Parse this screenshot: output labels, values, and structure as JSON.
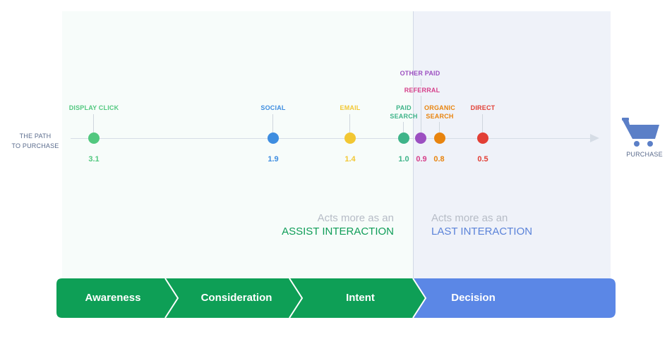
{
  "path_label": [
    "THE PATH",
    "TO PURCHASE"
  ],
  "purchase_label": "PURCHASE",
  "channels": [
    {
      "name": "DISPLAY CLICK",
      "value": "3.1",
      "color": "#52c87f"
    },
    {
      "name": "SOCIAL",
      "value": "1.9",
      "color": "#3e8de0"
    },
    {
      "name": "EMAIL",
      "value": "1.4",
      "color": "#f2c733"
    },
    {
      "name": "PAID\nSEARCH",
      "value": "1.0",
      "color": "#3fb489"
    },
    {
      "name": "OTHER PAID",
      "value": "",
      "color": "#9c4fc1"
    },
    {
      "name": "REFERRAL",
      "value": "0.9",
      "color": "#d63f8a"
    },
    {
      "name": "ORGANIC\nSEARCH",
      "value": "0.8",
      "color": "#e8840f"
    },
    {
      "name": "DIRECT",
      "value": "0.5",
      "color": "#e23f35"
    }
  ],
  "notes": {
    "assist": {
      "line1": "Acts more as an",
      "line2": "ASSIST INTERACTION"
    },
    "last": {
      "line1": "Acts more as an",
      "line2": "LAST INTERACTION"
    }
  },
  "stages": [
    {
      "label": "Awareness",
      "color": "#0e9f56"
    },
    {
      "label": "Consideration",
      "color": "#0e9f56"
    },
    {
      "label": "Intent",
      "color": "#0e9f56"
    },
    {
      "label": "Decision",
      "color": "#5b87e6"
    }
  ]
}
